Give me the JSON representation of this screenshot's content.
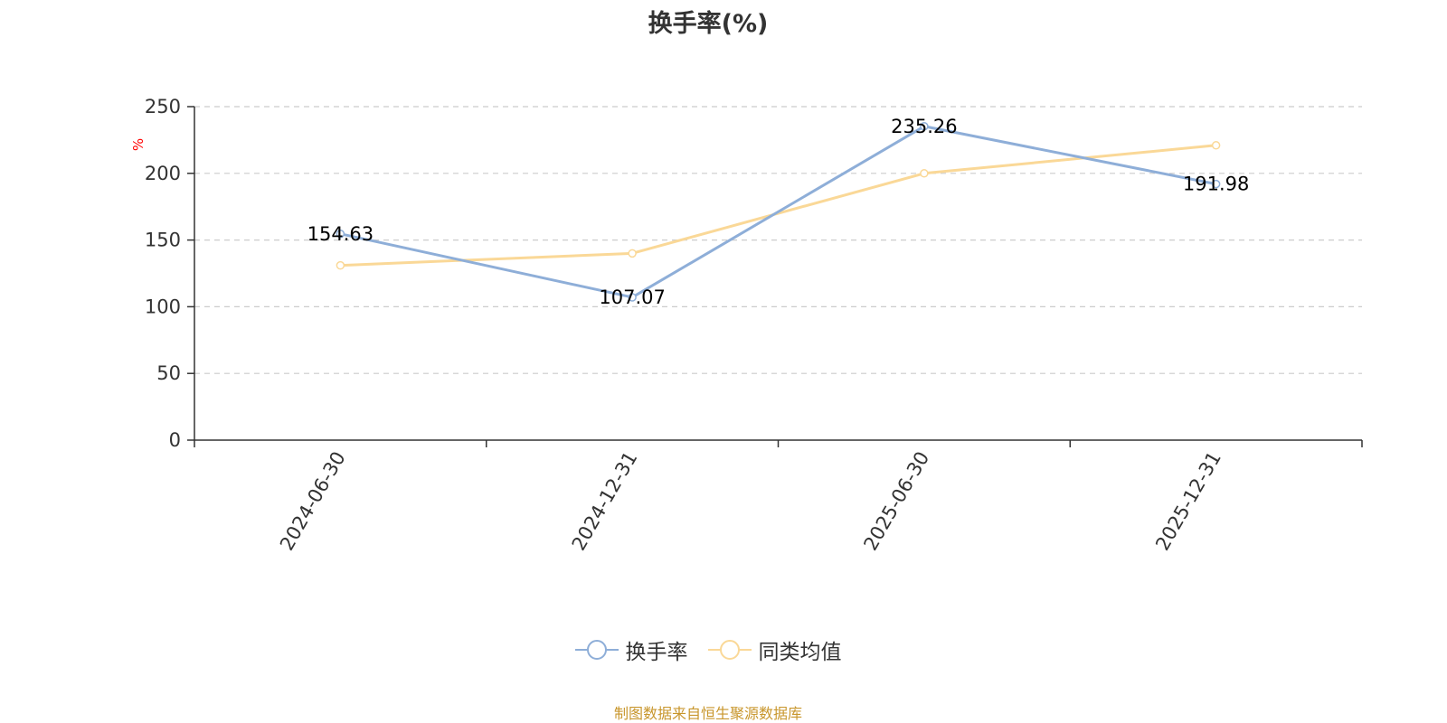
{
  "chart_data": {
    "type": "line",
    "title": "换手率(%)",
    "ylabel": "%",
    "xlabel": "",
    "categories": [
      "2024-06-30",
      "2024-12-31",
      "2025-06-30",
      "2025-12-31"
    ],
    "ylim": [
      0,
      250
    ],
    "yticks": [
      0,
      50,
      100,
      150,
      200,
      250
    ],
    "grid": true,
    "legend_position": "bottom-center",
    "series": [
      {
        "name": "换手率",
        "values": [
          154.63,
          107.07,
          235.26,
          191.98
        ],
        "color": "#8eaed8",
        "show_labels": true
      },
      {
        "name": "同类均值",
        "values": [
          131,
          140,
          200,
          221
        ],
        "color": "#fad897",
        "show_labels": false
      }
    ]
  },
  "source": "制图数据来自恒生聚源数据库"
}
